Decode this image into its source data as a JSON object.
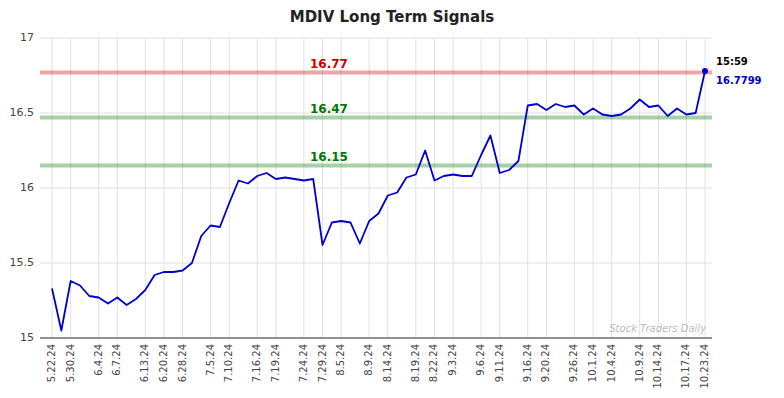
{
  "chart_data": {
    "type": "line",
    "title": "MDIV Long Term Signals",
    "categories": [
      "5.22.24",
      null,
      "5.30.24",
      null,
      null,
      "6.4.24",
      null,
      "6.7.24",
      null,
      null,
      "6.13.24",
      null,
      "6.20.24",
      null,
      "6.28.24",
      null,
      null,
      "7.5.24",
      null,
      "7.10.24",
      null,
      null,
      "7.16.24",
      null,
      "7.19.24",
      null,
      null,
      "7.24.24",
      null,
      "7.29.24",
      null,
      "8.5.24",
      null,
      null,
      "8.9.24",
      null,
      "8.14.24",
      null,
      null,
      "8.19.24",
      null,
      "8.22.24",
      null,
      "9.3.24",
      null,
      null,
      "9.6.24",
      null,
      "9.11.24",
      null,
      null,
      "9.16.24",
      null,
      "9.20.24",
      null,
      null,
      "9.26.24",
      null,
      "10.1.24",
      null,
      "10.4.24",
      null,
      null,
      "10.9.24",
      null,
      "10.14.24",
      null,
      null,
      "10.17.24",
      null,
      "10.23.24"
    ],
    "values": [
      15.33,
      15.05,
      15.38,
      15.35,
      15.28,
      15.27,
      15.23,
      15.27,
      15.22,
      15.26,
      15.32,
      15.42,
      15.44,
      15.44,
      15.45,
      15.5,
      15.68,
      15.75,
      15.74,
      15.9,
      16.05,
      16.03,
      16.08,
      16.1,
      16.06,
      16.07,
      16.06,
      16.05,
      16.06,
      15.62,
      15.77,
      15.78,
      15.77,
      15.63,
      15.78,
      15.83,
      15.95,
      15.97,
      16.07,
      16.09,
      16.25,
      16.05,
      16.08,
      16.09,
      16.08,
      16.08,
      16.22,
      16.35,
      16.1,
      16.12,
      16.18,
      16.55,
      16.56,
      16.52,
      16.56,
      16.54,
      16.55,
      16.49,
      16.53,
      16.49,
      16.48,
      16.49,
      16.53,
      16.59,
      16.54,
      16.55,
      16.48,
      16.53,
      16.49,
      16.5,
      16.7799
    ],
    "color": "#0000cc",
    "ylim": [
      15.0,
      17.0
    ],
    "yticks": [
      15,
      15.5,
      16,
      16.5,
      17
    ],
    "grid": true,
    "reference_lines": [
      {
        "value": 16.77,
        "label": "16.77",
        "color": "#cc0000"
      },
      {
        "value": 16.47,
        "label": "16.47",
        "color": "#007700"
      },
      {
        "value": 16.15,
        "label": "16.15",
        "color": "#007700"
      }
    ],
    "last_time": "15:59",
    "last_price": {
      "value": 16.7799,
      "label": "16.7799"
    },
    "watermark": "Stock Traders Daily"
  }
}
